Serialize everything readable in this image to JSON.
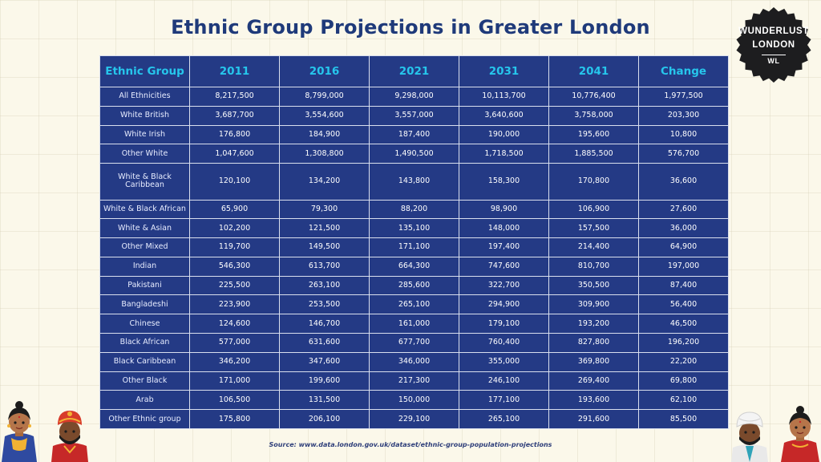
{
  "title": "Ethnic Group Projections in Greater London",
  "badge": {
    "line1": "WUNDERLUST",
    "line2": "LONDON",
    "line3": "WL"
  },
  "table": {
    "headers": [
      "Ethnic Group",
      "2011",
      "2016",
      "2021",
      "2031",
      "2041",
      "Change"
    ],
    "rows": [
      [
        "All Ethnicities",
        "8,217,500",
        "8,799,000",
        "9,298,000",
        "10,113,700",
        "10,776,400",
        "1,977,500"
      ],
      [
        "White British",
        "3,687,700",
        "3,554,600",
        "3,557,000",
        "3,640,600",
        "3,758,000",
        "203,300"
      ],
      [
        "White Irish",
        "176,800",
        "184,900",
        "187,400",
        "190,000",
        "195,600",
        "10,800"
      ],
      [
        "Other White",
        "1,047,600",
        "1,308,800",
        "1,490,500",
        "1,718,500",
        "1,885,500",
        "576,700"
      ],
      [
        "White & Black Caribbean",
        "120,100",
        "134,200",
        "143,800",
        "158,300",
        "170,800",
        "36,600"
      ],
      [
        "White & Black African",
        "65,900",
        "79,300",
        "88,200",
        "98,900",
        "106,900",
        "27,600"
      ],
      [
        "White & Asian",
        "102,200",
        "121,500",
        "135,100",
        "148,000",
        "157,500",
        "36,000"
      ],
      [
        "Other Mixed",
        "119,700",
        "149,500",
        "171,100",
        "197,400",
        "214,400",
        "64,900"
      ],
      [
        "Indian",
        "546,300",
        "613,700",
        "664,300",
        "747,600",
        "810,700",
        "197,000"
      ],
      [
        "Pakistani",
        "225,500",
        "263,100",
        "285,600",
        "322,700",
        "350,500",
        "87,400"
      ],
      [
        "Bangladeshi",
        "223,900",
        "253,500",
        "265,100",
        "294,900",
        "309,900",
        "56,400"
      ],
      [
        "Chinese",
        "124,600",
        "146,700",
        "161,000",
        "179,100",
        "193,200",
        "46,500"
      ],
      [
        "Black African",
        "577,000",
        "631,600",
        "677,700",
        "760,400",
        "827,800",
        "196,200"
      ],
      [
        "Black Caribbean",
        "346,200",
        "347,600",
        "346,000",
        "355,000",
        "369,800",
        "22,200"
      ],
      [
        "Other Black",
        "171,000",
        "199,600",
        "217,300",
        "246,100",
        "269,400",
        "69,800"
      ],
      [
        "Arab",
        "106,500",
        "131,500",
        "150,000",
        "177,100",
        "193,600",
        "62,100"
      ],
      [
        "Other Ethnic group",
        "175,800",
        "206,100",
        "229,100",
        "265,100",
        "291,600",
        "85,500"
      ]
    ]
  },
  "source": "Source: www.data.london.gov.uk/dataset/ethnic-group-population-projections",
  "colors": {
    "background": "#fbf8ea",
    "title": "#1f3a7a",
    "table_fill": "#243a85",
    "header_text": "#26c6ec",
    "badge": "#1d1d1f"
  }
}
